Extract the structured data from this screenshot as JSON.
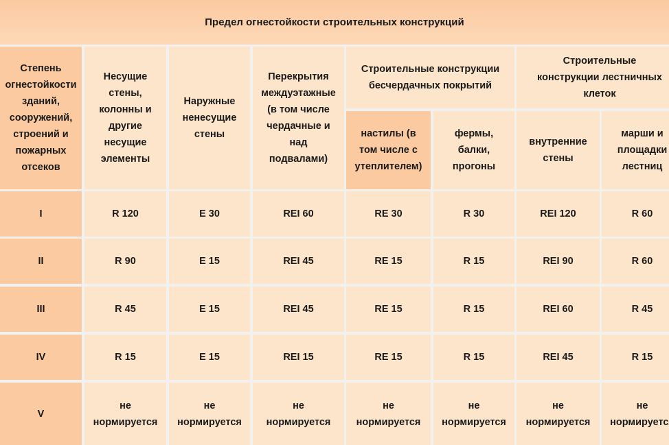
{
  "table": {
    "title": "Предел огнестойкости строительных конструкций",
    "header": {
      "degree": "Степень огнестойкости зданий, сооружений, строений и пожарных отсеков",
      "bearing": "Несущие стены, колонны и другие несущие элементы",
      "outer_walls": "Наружные ненесущие стены",
      "floors": "Перекрытия междуэтажные (в том числе чердачные и над подвалами)",
      "roof_group": "Строительные конструкции бесчердачных покрытий",
      "roof_decking": "настилы (в том числе с утеплителем)",
      "roof_trusses": "фермы, балки, прогоны",
      "stair_group": "Строительные конструкции лестничных клеток",
      "stair_inner_walls": "внутренние стены",
      "stair_flights": "марши и площадки лестниц"
    },
    "rows": [
      {
        "degree": "I",
        "bearing": "R 120",
        "outer_walls": "E 30",
        "floors": "REI 60",
        "roof_decking": "RE 30",
        "roof_trusses": "R 30",
        "stair_inner_walls": "REI 120",
        "stair_flights": "R 60"
      },
      {
        "degree": "II",
        "bearing": "R 90",
        "outer_walls": "E 15",
        "floors": "REI 45",
        "roof_decking": "RE 15",
        "roof_trusses": "R 15",
        "stair_inner_walls": "REI 90",
        "stair_flights": "R 60"
      },
      {
        "degree": "III",
        "bearing": "R 45",
        "outer_walls": "E 15",
        "floors": "REI 45",
        "roof_decking": "RE 15",
        "roof_trusses": "R 15",
        "stair_inner_walls": "REI 60",
        "stair_flights": "R 45"
      },
      {
        "degree": "IV",
        "bearing": "R 15",
        "outer_walls": "E 15",
        "floors": "REI 15",
        "roof_decking": "RE 15",
        "roof_trusses": "R 15",
        "stair_inner_walls": "REI 45",
        "stair_flights": "R 15"
      },
      {
        "degree": "V",
        "bearing": "не нормируется",
        "outer_walls": "не нормируется",
        "floors": "не нормируется",
        "roof_decking": "не нормируется",
        "roof_trusses": "не нормируется",
        "stair_inner_walls": "не нормируется",
        "stair_flights": "не нормируется"
      }
    ]
  }
}
